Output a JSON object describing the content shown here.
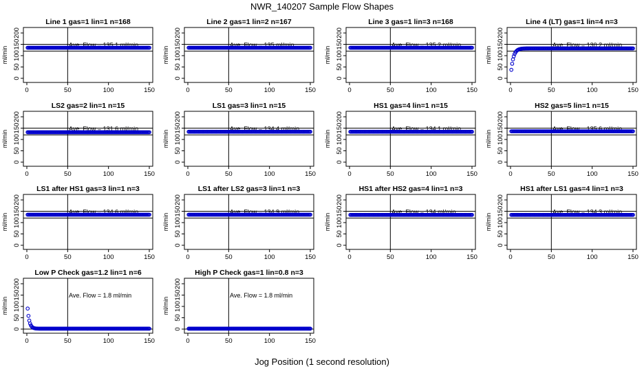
{
  "title": "NWR_140207  Sample Flow Shapes",
  "xlabel": "Jog Position (1 second resolution)",
  "colors": {
    "points": "#0000cc",
    "axes": "#000000",
    "background": "#ffffff"
  },
  "chart_data": [
    {
      "type": "scatter",
      "title": "Line 1 gas=1 lin=1 n=168",
      "annotation": "Ave. Flow = 135.1 ml/min",
      "ylabel": "ml/min",
      "xlim": [
        0,
        150
      ],
      "ylim": [
        0,
        200
      ],
      "xticks": [
        "0",
        "50",
        "100",
        "150"
      ],
      "yticks": [
        "0",
        "50",
        "100",
        "150",
        "200"
      ],
      "hlines": [
        120,
        150
      ],
      "vline": 50,
      "shape": "flat",
      "level": 135
    },
    {
      "type": "scatter",
      "title": "Line 2 gas=1 lin=2 n=167",
      "annotation": "Ave. Flow = 135 ml/min",
      "ylabel": "ml/min",
      "xlim": [
        0,
        150
      ],
      "ylim": [
        0,
        200
      ],
      "xticks": [
        "0",
        "50",
        "100",
        "150"
      ],
      "yticks": [
        "0",
        "50",
        "100",
        "150",
        "200"
      ],
      "hlines": [
        120,
        150
      ],
      "vline": 50,
      "shape": "flat",
      "level": 135
    },
    {
      "type": "scatter",
      "title": "Line 3 gas=1 lin=3 n=168",
      "annotation": "Ave. Flow = 135.2 ml/min",
      "ylabel": "ml/min",
      "xlim": [
        0,
        150
      ],
      "ylim": [
        0,
        200
      ],
      "xticks": [
        "0",
        "50",
        "100",
        "150"
      ],
      "yticks": [
        "0",
        "50",
        "100",
        "150",
        "200"
      ],
      "hlines": [
        120,
        150
      ],
      "vline": 50,
      "shape": "flat",
      "level": 135
    },
    {
      "type": "scatter",
      "title": "Line 4 (LT) gas=1 lin=4 n=3",
      "annotation": "Ave. Flow = 130.2 ml/min",
      "ylabel": "ml/min",
      "xlim": [
        0,
        150
      ],
      "ylim": [
        0,
        200
      ],
      "xticks": [
        "0",
        "50",
        "100",
        "150"
      ],
      "yticks": [
        "0",
        "50",
        "100",
        "150",
        "200"
      ],
      "hlines": [
        120,
        150
      ],
      "vline": 50,
      "shape": "rise",
      "level": 132
    },
    {
      "type": "scatter",
      "title": "LS2 gas=2 lin=1 n=15",
      "annotation": "Ave. Flow = 131.6 ml/min",
      "ylabel": "ml/min",
      "xlim": [
        0,
        150
      ],
      "ylim": [
        0,
        200
      ],
      "xticks": [
        "0",
        "50",
        "100",
        "150"
      ],
      "yticks": [
        "0",
        "50",
        "100",
        "150",
        "200"
      ],
      "hlines": [
        120,
        150
      ],
      "vline": 50,
      "shape": "flat",
      "level": 132
    },
    {
      "type": "scatter",
      "title": "LS1 gas=3 lin=1 n=15",
      "annotation": "Ave. Flow = 134.4 ml/min",
      "ylabel": "ml/min",
      "xlim": [
        0,
        150
      ],
      "ylim": [
        0,
        200
      ],
      "xticks": [
        "0",
        "50",
        "100",
        "150"
      ],
      "yticks": [
        "0",
        "50",
        "100",
        "150",
        "200"
      ],
      "hlines": [
        120,
        150
      ],
      "vline": 50,
      "shape": "flat",
      "level": 134
    },
    {
      "type": "scatter",
      "title": "HS1 gas=4 lin=1 n=15",
      "annotation": "Ave. Flow = 134.1 ml/min",
      "ylabel": "ml/min",
      "xlim": [
        0,
        150
      ],
      "ylim": [
        0,
        200
      ],
      "xticks": [
        "0",
        "50",
        "100",
        "150"
      ],
      "yticks": [
        "0",
        "50",
        "100",
        "150",
        "200"
      ],
      "hlines": [
        120,
        150
      ],
      "vline": 50,
      "shape": "flat",
      "level": 134
    },
    {
      "type": "scatter",
      "title": "HS2 gas=5 lin=1 n=15",
      "annotation": "Ave. Flow = 135.6 ml/min",
      "ylabel": "ml/min",
      "xlim": [
        0,
        150
      ],
      "ylim": [
        0,
        200
      ],
      "xticks": [
        "0",
        "50",
        "100",
        "150"
      ],
      "yticks": [
        "0",
        "50",
        "100",
        "150",
        "200"
      ],
      "hlines": [
        120,
        150
      ],
      "vline": 50,
      "shape": "flat",
      "level": 136
    },
    {
      "type": "scatter",
      "title": "LS1 after HS1 gas=3 lin=1 n=3",
      "annotation": "Ave. Flow = 134.6 ml/min",
      "ylabel": "ml/min",
      "xlim": [
        0,
        150
      ],
      "ylim": [
        0,
        200
      ],
      "xticks": [
        "0",
        "50",
        "100",
        "150"
      ],
      "yticks": [
        "0",
        "50",
        "100",
        "150",
        "200"
      ],
      "hlines": [
        120,
        150
      ],
      "vline": 50,
      "shape": "flat",
      "level": 135
    },
    {
      "type": "scatter",
      "title": "LS1 after LS2 gas=3 lin=1 n=3",
      "annotation": "Ave. Flow = 134.9 ml/min",
      "ylabel": "ml/min",
      "xlim": [
        0,
        150
      ],
      "ylim": [
        0,
        200
      ],
      "xticks": [
        "0",
        "50",
        "100",
        "150"
      ],
      "yticks": [
        "0",
        "50",
        "100",
        "150",
        "200"
      ],
      "hlines": [
        120,
        150
      ],
      "vline": 50,
      "shape": "flat",
      "level": 135
    },
    {
      "type": "scatter",
      "title": "HS1 after HS2 gas=4 lin=1 n=3",
      "annotation": "Ave. Flow = 134 ml/min",
      "ylabel": "ml/min",
      "xlim": [
        0,
        150
      ],
      "ylim": [
        0,
        200
      ],
      "xticks": [
        "0",
        "50",
        "100",
        "150"
      ],
      "yticks": [
        "0",
        "50",
        "100",
        "150",
        "200"
      ],
      "hlines": [
        120,
        150
      ],
      "vline": 50,
      "shape": "flat",
      "level": 134
    },
    {
      "type": "scatter",
      "title": "HS1 after LS1 gas=4 lin=1 n=3",
      "annotation": "Ave. Flow = 134.3 ml/min",
      "ylabel": "ml/min",
      "xlim": [
        0,
        150
      ],
      "ylim": [
        0,
        200
      ],
      "xticks": [
        "0",
        "50",
        "100",
        "150"
      ],
      "yticks": [
        "0",
        "50",
        "100",
        "150",
        "200"
      ],
      "hlines": [
        120,
        150
      ],
      "vline": 50,
      "shape": "flat",
      "level": 134
    },
    {
      "type": "scatter",
      "title": "Low P Check gas=1.2 lin=1 n=6",
      "annotation": "Ave. Flow = 1.8 ml/min",
      "ylabel": "ml/min",
      "xlim": [
        0,
        150
      ],
      "ylim": [
        0,
        200
      ],
      "xticks": [
        "0",
        "50",
        "100",
        "150"
      ],
      "yticks": [
        "0",
        "50",
        "100",
        "150",
        "200"
      ],
      "hlines": [
        0
      ],
      "vline": 50,
      "shape": "decay",
      "level": 1.8
    },
    {
      "type": "scatter",
      "title": "High P Check gas=1 lin=0.8 n=3",
      "annotation": "Ave. Flow = 1.8 ml/min",
      "ylabel": "ml/min",
      "xlim": [
        0,
        150
      ],
      "ylim": [
        0,
        200
      ],
      "xticks": [
        "0",
        "50",
        "100",
        "150"
      ],
      "yticks": [
        "0",
        "50",
        "100",
        "150",
        "200"
      ],
      "hlines": [
        0
      ],
      "vline": 50,
      "shape": "flat",
      "level": 1.8
    }
  ]
}
